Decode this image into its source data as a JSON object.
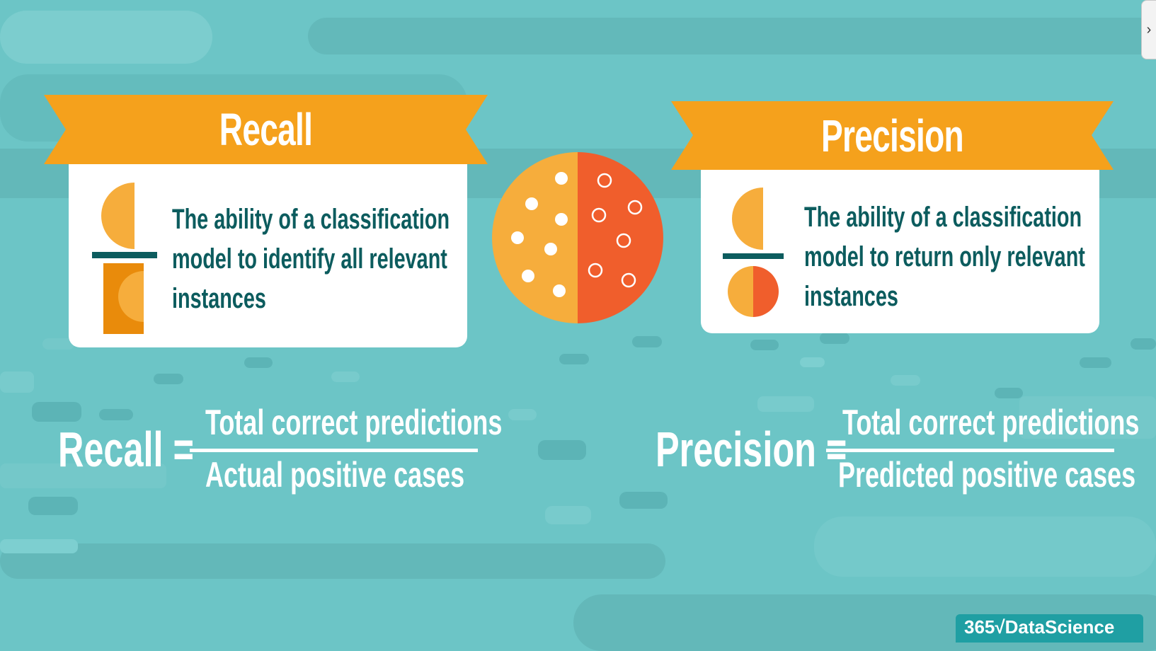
{
  "recall": {
    "title": "Recall",
    "definition_lines": [
      "The ability of a classification",
      "model to identify all relevant",
      "instances"
    ],
    "formula_lhs": "Recall =",
    "numerator": "Total correct predictions",
    "denominator": "Actual positive cases"
  },
  "precision": {
    "title": "Precision",
    "definition_lines": [
      "The ability of a classification",
      "model to return only relevant",
      "instances"
    ],
    "formula_lhs": "Precision =",
    "numerator": "Total correct predictions",
    "denominator": "Predicted positive cases"
  },
  "logo": {
    "text": "365√DataScience"
  },
  "colors": {
    "background": "#6cc5c6",
    "banner": "#f5a11c",
    "orange_light": "#f6ad3c",
    "orange_dark": "#e98b0b",
    "red": "#f05e2c",
    "text_dark": "#0c5c5e",
    "white": "#ffffff"
  }
}
